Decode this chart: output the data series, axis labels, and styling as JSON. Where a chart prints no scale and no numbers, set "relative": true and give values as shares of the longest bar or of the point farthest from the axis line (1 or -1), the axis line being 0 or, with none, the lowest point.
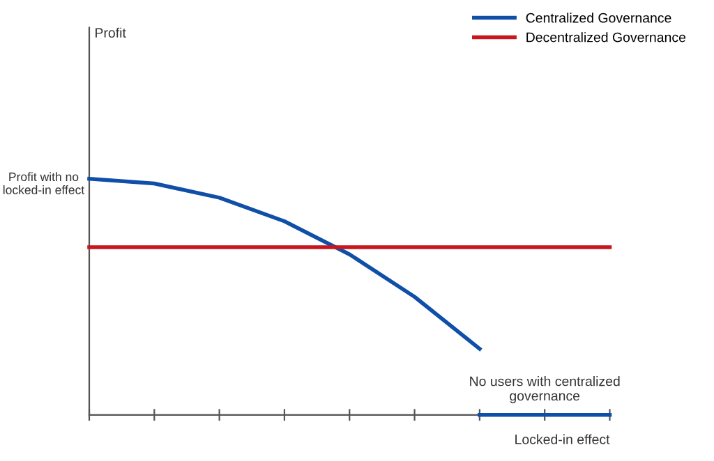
{
  "chart_data": {
    "type": "line",
    "relative": true,
    "xlabel": "Locked-in effect",
    "categories": [
      null,
      null,
      null,
      null,
      null,
      null,
      null,
      null,
      null
    ],
    "series": [
      {
        "name": "Centralized Governance",
        "color": "#0f4fa8",
        "values": [
          1,
          0.98,
          0.92,
          0.82,
          0.68,
          0.5,
          0.28,
          null,
          null
        ]
      },
      {
        "name": "Decentralized Governance",
        "color": "#c8161d",
        "values": [
          0.71,
          0.71,
          0.71,
          0.71,
          0.71,
          0.71,
          0.71,
          0.71,
          0.71
        ]
      },
      {
        "color": "#0f4fa8",
        "values": [
          null,
          null,
          null,
          null,
          null,
          null,
          0,
          0,
          0
        ]
      }
    ],
    "annotations": [
      "Profit with no locked-in effect",
      {
        "text": "No users with centralized governance",
        "y": 0
      },
      "Profit"
    ],
    "legend": "top right",
    "grid": false,
    "marker": "none",
    "line_style": "solid"
  }
}
